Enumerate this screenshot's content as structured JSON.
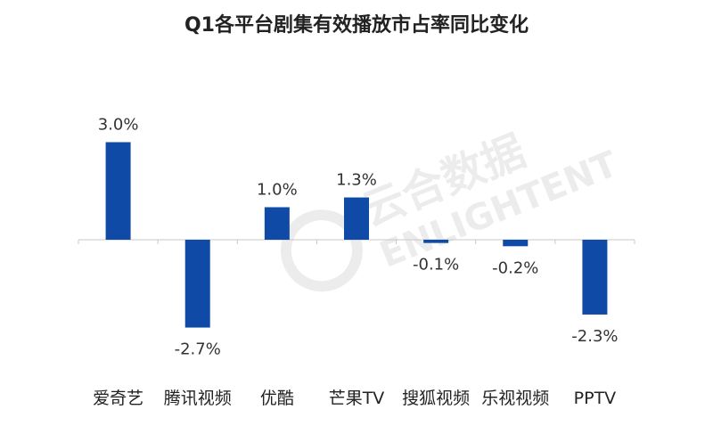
{
  "chart_data": {
    "type": "bar",
    "title": "Q1各平台剧集有效播放市占率同比变化",
    "categories": [
      "爱奇艺",
      "腾讯视频",
      "优酷",
      "芒果TV",
      "搜狐视频",
      "乐视视频",
      "PPTV"
    ],
    "values": [
      3.0,
      -2.7,
      1.0,
      1.3,
      -0.1,
      -0.2,
      -2.3
    ],
    "data_labels": [
      "3.0%",
      "-2.7%",
      "1.0%",
      "1.3%",
      "-0.1%",
      "-0.2%",
      "-2.3%"
    ],
    "ylim": [
      -3.0,
      3.5
    ],
    "grid": false,
    "legend": "none",
    "bar_color": "#0f4ba6"
  },
  "watermark": {
    "cn": "云合数据",
    "en": "ENLIGHTENT"
  }
}
